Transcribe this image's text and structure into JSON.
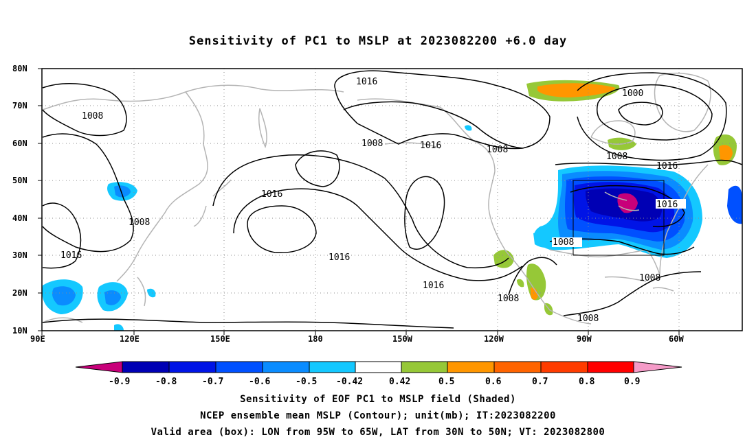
{
  "title": "Sensitivity of PC1 to MSLP at 2023082200 +6.0 day",
  "map": {
    "lon_range": [
      "90E",
      "310E (50W)"
    ],
    "lat_range": [
      "10N",
      "80N"
    ],
    "lat_ticks": [
      "80N",
      "70N",
      "60N",
      "50N",
      "40N",
      "30N",
      "20N",
      "10N"
    ],
    "lon_ticks": [
      "90E",
      "120E",
      "150E",
      "180",
      "150W",
      "120W",
      "90W",
      "60W"
    ],
    "grid": "dotted",
    "contour_labels": [
      "1016",
      "1008",
      "1008",
      "1016",
      "1008",
      "1016",
      "1008",
      "1000",
      "1008",
      "1016",
      "1016",
      "1008",
      "1016",
      "1016",
      "1016",
      "1008",
      "1008",
      "1008"
    ],
    "valid_box": {
      "lon_from": "95W",
      "lon_to": "65W",
      "lat_from": "30N",
      "lat_to": "50N"
    }
  },
  "colorbar": {
    "colors": [
      "#c8007a",
      "#0000b4",
      "#0014e6",
      "#0050ff",
      "#0a8cff",
      "#14c8ff",
      "#ffffff",
      "#96c837",
      "#ff9600",
      "#ff6400",
      "#ff3c00",
      "#ff0000",
      "#f59bc8"
    ],
    "labels": [
      "-0.9",
      "-0.8",
      "-0.7",
      "-0.6",
      "-0.5",
      "-0.42",
      "0.42",
      "0.5",
      "0.6",
      "0.7",
      "0.8",
      "0.9"
    ]
  },
  "captions": {
    "line1": "Sensitivity of EOF PC1 to MSLP field (Shaded)",
    "line2": "NCEP ensemble mean MSLP (Contour); unit(mb); IT:2023082200",
    "line3": "Valid area (box): LON from 95W to 65W, LAT from 30N to 50N; VT: 2023082800"
  },
  "colors": {
    "coastline": "#b4b4b4",
    "contour": "#000000",
    "grid": "#8c8c8c"
  }
}
